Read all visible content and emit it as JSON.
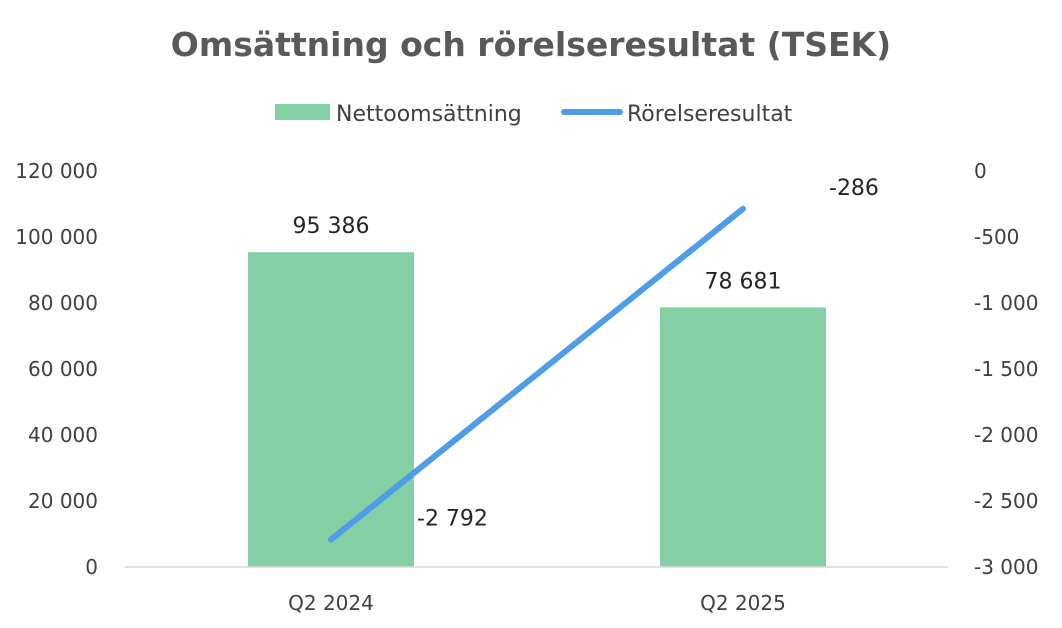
{
  "chart_data": {
    "type": "bar",
    "title": "Omsättning och rörelseresultat (TSEK)",
    "categories": [
      "Q2 2024",
      "Q2 2025"
    ],
    "series": [
      {
        "name": "Nettoomsättning",
        "type": "bar",
        "axis": "left",
        "color": "#84D0A4",
        "values": [
          95386,
          78681
        ],
        "labels": [
          "95 386",
          "78 681"
        ]
      },
      {
        "name": "Rörelseresultat",
        "type": "line",
        "axis": "right",
        "color": "#4F9DE8",
        "values": [
          -2792,
          -286
        ],
        "labels": [
          "-2 792",
          "-286"
        ]
      }
    ],
    "y_left": {
      "min": 0,
      "max": 120000,
      "ticks": [
        0,
        20000,
        40000,
        60000,
        80000,
        100000,
        120000
      ],
      "tick_labels": [
        "0",
        "20 000",
        "40 000",
        "60 000",
        "80 000",
        "100 000",
        "120 000"
      ]
    },
    "y_right": {
      "min": -3000,
      "max": 0,
      "ticks": [
        -3000,
        -2500,
        -2000,
        -1500,
        -1000,
        -500,
        0
      ],
      "tick_labels": [
        "-3 000",
        "-2 500",
        "-2 000",
        "-1 500",
        "-1 000",
        "-500",
        "0"
      ]
    },
    "legend_position": "top-center",
    "grid": false
  }
}
